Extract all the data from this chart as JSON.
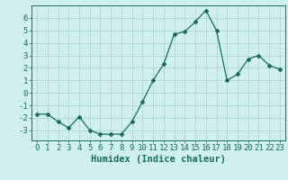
{
  "x": [
    0,
    1,
    2,
    3,
    4,
    5,
    6,
    7,
    8,
    9,
    10,
    11,
    12,
    13,
    14,
    15,
    16,
    17,
    18,
    19,
    20,
    21,
    22,
    23
  ],
  "y": [
    -1.7,
    -1.7,
    -2.3,
    -2.8,
    -1.9,
    -3.0,
    -3.3,
    -3.3,
    -3.3,
    -2.3,
    -0.7,
    1.0,
    2.3,
    4.7,
    4.9,
    5.7,
    6.6,
    5.0,
    1.0,
    1.5,
    2.7,
    3.0,
    2.2,
    1.9
  ],
  "line_color": "#1a6b5a",
  "marker": "D",
  "marker_size": 2.0,
  "bg_color": "#cff0ec",
  "grid_color": "#b0d8d2",
  "xlabel": "Humidex (Indice chaleur)",
  "xlim": [
    -0.5,
    23.5
  ],
  "ylim": [
    -3.8,
    7.0
  ],
  "yticks": [
    -3,
    -2,
    -1,
    0,
    1,
    2,
    3,
    4,
    5,
    6
  ],
  "xticks": [
    0,
    1,
    2,
    3,
    4,
    5,
    6,
    7,
    8,
    9,
    10,
    11,
    12,
    13,
    14,
    15,
    16,
    17,
    18,
    19,
    20,
    21,
    22,
    23
  ],
  "tick_color": "#1a6b5a",
  "label_fontsize": 6.5,
  "axis_fontsize": 7.5
}
